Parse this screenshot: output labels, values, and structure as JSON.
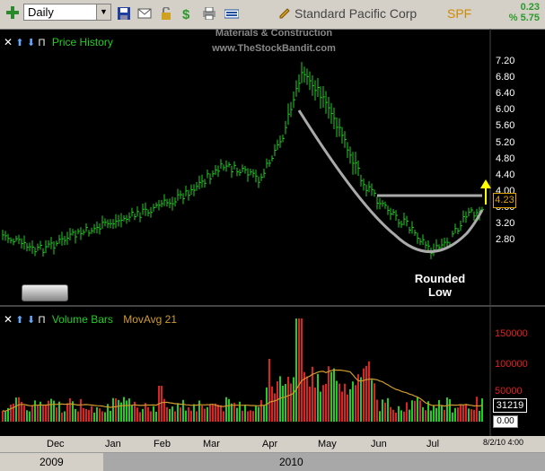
{
  "toolbar": {
    "period": "Daily",
    "company": "Standard Pacific Corp",
    "ticker": "SPF",
    "change_abs": "0.23",
    "change_pct": "% 5.75",
    "icons": [
      "add-icon",
      "save-icon",
      "mail-icon",
      "lock-icon",
      "dollar-icon",
      "print-icon",
      "keyboard-icon",
      "pencil-icon"
    ]
  },
  "price_panel": {
    "label": "Price History",
    "watermark_line1": "Materials & Construction",
    "watermark_line2": "www.TheStockBandit.com",
    "last_price": "4.23",
    "annotation_line1": "Rounded",
    "annotation_line2": "Low",
    "axis_ticks": [
      "7.20",
      "6.80",
      "6.40",
      "6.00",
      "5.60",
      "5.20",
      "4.80",
      "4.40",
      "4.00",
      "3.60",
      "3.20",
      "2.80"
    ]
  },
  "volume_panel": {
    "label": "Volume Bars",
    "ma_label": "MovAvg 21",
    "axis_ticks": [
      "150000",
      "100000",
      "50000"
    ],
    "last_volume": "31219",
    "zero_value": "0.00"
  },
  "time_axis": {
    "months": [
      "Dec",
      "Jan",
      "Feb",
      "Mar",
      "Apr",
      "May",
      "Jun",
      "Jul"
    ],
    "years": [
      "2009",
      "2010"
    ],
    "datestamp": "8/2/10 4:00"
  },
  "colors": {
    "up": "#22cc22",
    "down": "#dd2222",
    "ma": "#d09a30",
    "pattern": "#aaaaaa",
    "arrow": "#ffff00"
  }
}
